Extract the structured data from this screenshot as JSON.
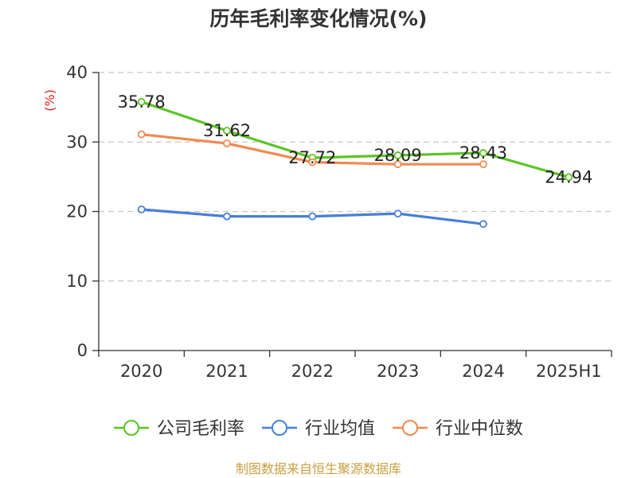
{
  "chart_data": {
    "type": "line",
    "title": "历年毛利率变化情况(%)",
    "ylabel": "(%)",
    "categories": [
      "2020",
      "2021",
      "2022",
      "2023",
      "2024",
      "2025H1"
    ],
    "ylim": [
      0,
      40
    ],
    "yticks": [
      0,
      10,
      20,
      30,
      40
    ],
    "grid": true,
    "legend_position": "bottom",
    "series": [
      {
        "name": "公司毛利率",
        "color": "#5cc424",
        "values": [
          35.78,
          31.62,
          27.72,
          28.09,
          28.43,
          24.94
        ],
        "labels": [
          "35.78",
          "31.62",
          "27.72",
          "28.09",
          "28.43",
          "24.94"
        ]
      },
      {
        "name": "行业均值",
        "color": "#4a7fd8",
        "values": [
          20.3,
          19.3,
          19.3,
          19.7,
          18.2,
          null
        ]
      },
      {
        "name": "行业中位数",
        "color": "#f08a50",
        "values": [
          31.1,
          29.8,
          27.1,
          26.8,
          26.8,
          null
        ]
      }
    ]
  },
  "source_text": "制图数据来自恒生聚源数据库"
}
